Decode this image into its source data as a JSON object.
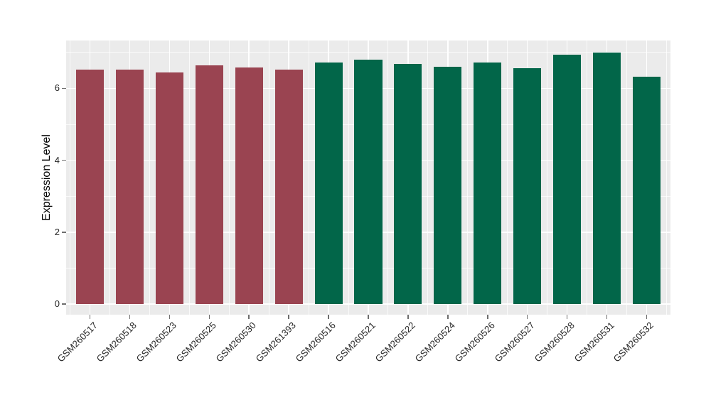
{
  "chart_data": {
    "type": "bar",
    "title": "",
    "xlabel": "",
    "ylabel": "Expression Level",
    "ylim": [
      0,
      7.34
    ],
    "yticks": [
      0,
      2,
      4,
      6
    ],
    "yminor": [
      1,
      3,
      5,
      7
    ],
    "legend_position": "none",
    "grid": {
      "panel_background": "#EBEBEB",
      "major_gridline_color": "#FFFFFF",
      "minor_gridline_color": "#FFFFFF",
      "major": true,
      "minor": true
    },
    "bar_width_fraction": 0.7,
    "categories": [
      "GSM260517",
      "GSM260518",
      "GSM260523",
      "GSM260525",
      "GSM260530",
      "GSM261393",
      "GSM260516",
      "GSM260521",
      "GSM260522",
      "GSM260524",
      "GSM260526",
      "GSM260527",
      "GSM260528",
      "GSM260531",
      "GSM260532"
    ],
    "values": [
      6.52,
      6.52,
      6.44,
      6.65,
      6.59,
      6.52,
      6.72,
      6.79,
      6.67,
      6.61,
      6.71,
      6.57,
      6.93,
      6.99,
      6.32
    ],
    "bar_colors": [
      "#9A4451",
      "#9A4451",
      "#9A4451",
      "#9A4451",
      "#9A4451",
      "#9A4451",
      "#026649",
      "#026649",
      "#026649",
      "#026649",
      "#026649",
      "#026649",
      "#026649",
      "#026649",
      "#026649"
    ],
    "palette": {
      "maroon": "#9A4451",
      "green": "#026649"
    },
    "axis_text_color": "#262626",
    "axis_title_color": "#000000"
  }
}
